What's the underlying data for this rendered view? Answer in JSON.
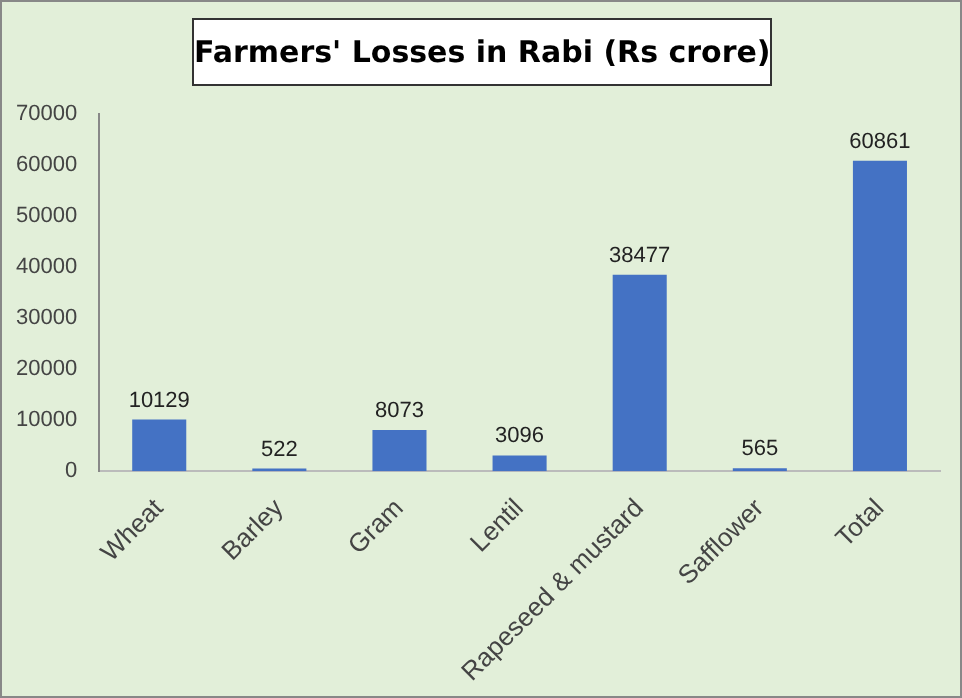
{
  "chart_data": {
    "type": "bar",
    "title": "Farmers' Losses in Rabi (Rs crore)",
    "categories": [
      "Wheat",
      "Barley",
      "Gram",
      "Lentil",
      "Rapeseed & mustard",
      "Safflower",
      "Total"
    ],
    "values": [
      10129,
      522,
      8073,
      3096,
      38477,
      565,
      60861
    ],
    "color": "#4472c4",
    "ylim": [
      0,
      70000
    ],
    "yticks": [
      0,
      10000,
      20000,
      30000,
      40000,
      50000,
      60000,
      70000
    ],
    "grid": false,
    "legend": false,
    "data_labels": true
  }
}
